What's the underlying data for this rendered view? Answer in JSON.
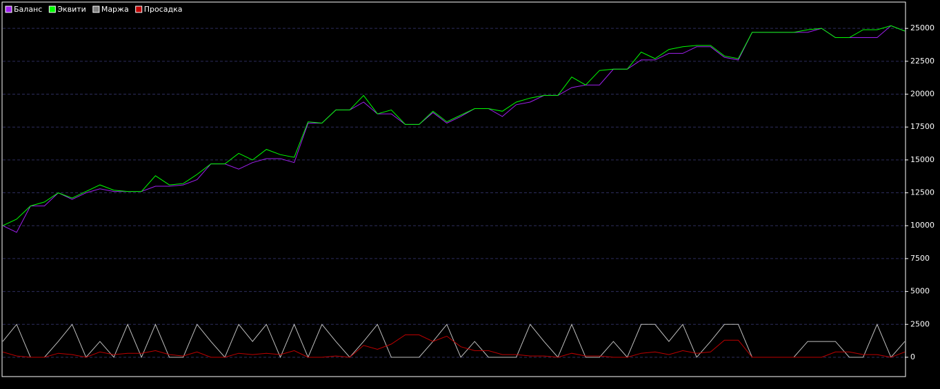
{
  "chart_data": {
    "type": "line",
    "series": [
      {
        "name": "Баланс",
        "color": "#a020f0",
        "values": [
          10000,
          9500,
          11500,
          11500,
          12500,
          12000,
          12500,
          12800,
          12600,
          12600,
          12600,
          13000,
          13000,
          13100,
          13500,
          14700,
          14700,
          14300,
          14800,
          15100,
          15100,
          14800,
          17800,
          17800,
          18800,
          18800,
          19400,
          18500,
          18500,
          17700,
          17700,
          18600,
          17800,
          18300,
          18900,
          18900,
          18300,
          19200,
          19400,
          19900,
          19900,
          20500,
          20700,
          20700,
          21900,
          21900,
          22600,
          22600,
          23100,
          23100,
          23600,
          23600,
          22800,
          22600,
          24700,
          24700,
          24700,
          24700,
          24700,
          25000,
          24300,
          24300,
          24300,
          24300,
          25200,
          24800
        ]
      },
      {
        "name": "Эквити",
        "color": "#00ff00",
        "values": [
          10000,
          10500,
          11500,
          11800,
          12500,
          12100,
          12600,
          13100,
          12700,
          12600,
          12600,
          13800,
          13100,
          13200,
          13900,
          14700,
          14700,
          15500,
          15000,
          15800,
          15400,
          15200,
          17900,
          17800,
          18800,
          18800,
          19900,
          18500,
          18800,
          17700,
          17700,
          18700,
          17900,
          18400,
          18900,
          18900,
          18700,
          19400,
          19700,
          19900,
          19900,
          21300,
          20700,
          21800,
          21900,
          21900,
          23200,
          22700,
          23400,
          23600,
          23700,
          23700,
          22900,
          22700,
          24700,
          24700,
          24700,
          24700,
          24900,
          25000,
          24300,
          24300,
          24900,
          24900,
          25200,
          24800
        ]
      },
      {
        "name": "Маржа",
        "color": "#c0c0c0",
        "legend_color": "#808080",
        "values": [
          1200,
          2500,
          0,
          0,
          1200,
          2500,
          0,
          1200,
          0,
          2500,
          0,
          2500,
          0,
          0,
          2500,
          1200,
          0,
          2500,
          1200,
          2500,
          0,
          2500,
          0,
          2500,
          1200,
          0,
          1200,
          2500,
          0,
          0,
          0,
          1200,
          2500,
          0,
          1200,
          0,
          0,
          0,
          2500,
          1200,
          0,
          2500,
          0,
          0,
          1200,
          0,
          2500,
          2500,
          1200,
          2500,
          0,
          1200,
          2500,
          2500,
          0,
          0,
          0,
          0,
          1200,
          1200,
          1200,
          0,
          0,
          2500,
          0,
          1200
        ]
      },
      {
        "name": "Просадка",
        "color": "#c00000",
        "values": [
          400,
          100,
          0,
          0,
          300,
          200,
          0,
          400,
          200,
          300,
          300,
          500,
          200,
          100,
          400,
          0,
          0,
          300,
          200,
          300,
          200,
          500,
          0,
          0,
          100,
          0,
          900,
          600,
          1000,
          1700,
          1700,
          1200,
          1600,
          800,
          500,
          500,
          200,
          200,
          100,
          100,
          0,
          300,
          100,
          100,
          0,
          0,
          300,
          400,
          200,
          500,
          300,
          400,
          1300,
          1300,
          0,
          0,
          0,
          0,
          0,
          0,
          400,
          400,
          200,
          200,
          0,
          400
        ]
      }
    ],
    "ylim": [
      -1470,
      27000
    ],
    "yticks": [
      0,
      2500,
      5000,
      7500,
      10000,
      12500,
      15000,
      17500,
      20000,
      22500,
      25000
    ],
    "grid": true,
    "legend": "upper left"
  }
}
